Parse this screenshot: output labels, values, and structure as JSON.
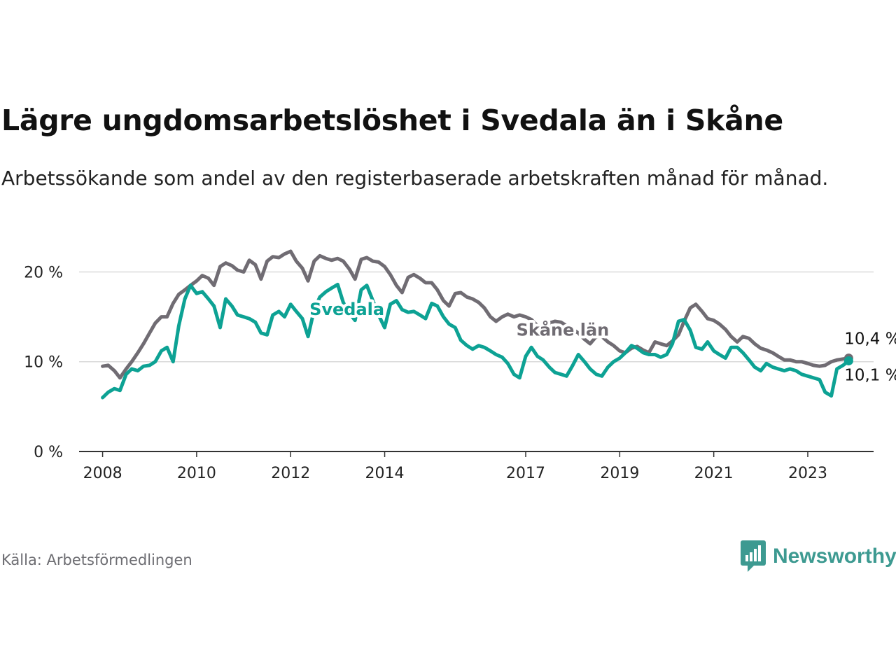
{
  "title": "Lägre ungdomsarbetslöshet i Svedala än i Skåne",
  "subtitle": "Arbetssökande som andel av den registerbaserade arbetskraften månad för månad.",
  "source": "Källa: Arbetsförmedlingen",
  "brand": {
    "name": "Newsworthy",
    "color": "#3d9a91",
    "icon": "newsworthy-bar-chart-icon"
  },
  "chart_data": {
    "type": "line",
    "title": "Lägre ungdomsarbetslöshet i Svedala än i Skåne",
    "xlabel": "",
    "ylabel": "",
    "xlim": [
      2007.5,
      2024.4
    ],
    "ylim": [
      0,
      23
    ],
    "y_ticks": [
      0,
      10,
      20
    ],
    "y_tick_labels": [
      "0 %",
      "10 %",
      "20 %"
    ],
    "x_ticks": [
      2008,
      2010,
      2012,
      2014,
      2017,
      2019,
      2021,
      2023
    ],
    "x_tick_labels": [
      "2008",
      "2010",
      "2012",
      "2014",
      "2017",
      "2019",
      "2021",
      "2023"
    ],
    "grid": true,
    "series": [
      {
        "name": "Skåne län",
        "label": "Skåne län",
        "color": "#706c73",
        "end_label": "10,4 %",
        "x": [
          2008,
          2008.12,
          2008.25,
          2008.37,
          2008.5,
          2008.62,
          2008.75,
          2008.87,
          2009,
          2009.12,
          2009.25,
          2009.37,
          2009.5,
          2009.62,
          2009.75,
          2009.87,
          2010,
          2010.12,
          2010.25,
          2010.37,
          2010.5,
          2010.62,
          2010.75,
          2010.87,
          2011,
          2011.12,
          2011.25,
          2011.37,
          2011.5,
          2011.62,
          2011.75,
          2011.87,
          2012,
          2012.12,
          2012.25,
          2012.37,
          2012.5,
          2012.62,
          2012.75,
          2012.87,
          2013,
          2013.12,
          2013.25,
          2013.37,
          2013.5,
          2013.62,
          2013.75,
          2013.87,
          2014,
          2014.12,
          2014.25,
          2014.37,
          2014.5,
          2014.62,
          2014.75,
          2014.87,
          2015,
          2015.12,
          2015.25,
          2015.37,
          2015.5,
          2015.62,
          2015.75,
          2015.87,
          2016,
          2016.12,
          2016.25,
          2016.37,
          2016.5,
          2016.62,
          2016.75,
          2016.87,
          2017,
          2017.12,
          2017.25,
          2017.37,
          2017.5,
          2017.62,
          2017.75,
          2017.87,
          2018,
          2018.12,
          2018.25,
          2018.37,
          2018.5,
          2018.62,
          2018.75,
          2018.87,
          2019,
          2019.12,
          2019.25,
          2019.37,
          2019.5,
          2019.62,
          2019.75,
          2019.87,
          2020,
          2020.12,
          2020.25,
          2020.37,
          2020.5,
          2020.62,
          2020.75,
          2020.87,
          2021,
          2021.12,
          2021.25,
          2021.37,
          2021.5,
          2021.62,
          2021.75,
          2021.87,
          2022,
          2022.12,
          2022.25,
          2022.37,
          2022.5,
          2022.62,
          2022.75,
          2022.87,
          2023,
          2023.12,
          2023.25,
          2023.37,
          2023.5,
          2023.62,
          2023.75,
          2023.87
        ],
        "values": [
          9.5,
          9.6,
          9.0,
          8.2,
          9.2,
          10.0,
          11.0,
          12.0,
          13.2,
          14.3,
          15.0,
          15.0,
          16.5,
          17.5,
          18.0,
          18.5,
          19.0,
          19.6,
          19.3,
          18.5,
          20.6,
          21.0,
          20.7,
          20.2,
          20.0,
          21.3,
          20.8,
          19.2,
          21.2,
          21.7,
          21.6,
          22.0,
          22.3,
          21.2,
          20.4,
          19.0,
          21.2,
          21.8,
          21.5,
          21.3,
          21.5,
          21.2,
          20.3,
          19.2,
          21.4,
          21.6,
          21.2,
          21.1,
          20.6,
          19.7,
          18.5,
          17.7,
          19.4,
          19.7,
          19.3,
          18.8,
          18.8,
          18.0,
          16.8,
          16.2,
          17.6,
          17.7,
          17.2,
          17.0,
          16.6,
          16.0,
          15.0,
          14.5,
          15.0,
          15.3,
          15.0,
          15.2,
          15.0,
          14.7,
          14.0,
          13.2,
          14.3,
          14.5,
          14.4,
          14.0,
          13.6,
          13.2,
          12.5,
          12.0,
          12.8,
          12.8,
          12.2,
          11.8,
          11.2,
          11.0,
          11.5,
          11.7,
          11.3,
          11.0,
          12.2,
          12.0,
          11.8,
          12.3,
          13.0,
          14.5,
          16.0,
          16.4,
          15.6,
          14.8,
          14.6,
          14.2,
          13.6,
          12.8,
          12.2,
          12.8,
          12.6,
          12.0,
          11.5,
          11.3,
          11.0,
          10.6,
          10.2,
          10.2,
          10.0,
          10.0,
          9.8,
          9.6,
          9.5,
          9.6,
          10.0,
          10.2,
          10.3,
          10.4
        ]
      },
      {
        "name": "Svedala",
        "label": "Svedala",
        "color": "#0da294",
        "end_label": "10,1 %",
        "x": [
          2008,
          2008.12,
          2008.25,
          2008.37,
          2008.5,
          2008.62,
          2008.75,
          2008.87,
          2009,
          2009.12,
          2009.25,
          2009.37,
          2009.5,
          2009.62,
          2009.75,
          2009.87,
          2010,
          2010.12,
          2010.25,
          2010.37,
          2010.5,
          2010.62,
          2010.75,
          2010.87,
          2011,
          2011.12,
          2011.25,
          2011.37,
          2011.5,
          2011.62,
          2011.75,
          2011.87,
          2012,
          2012.12,
          2012.25,
          2012.37,
          2012.5,
          2012.62,
          2012.75,
          2012.87,
          2013,
          2013.12,
          2013.25,
          2013.37,
          2013.5,
          2013.62,
          2013.75,
          2013.87,
          2014,
          2014.12,
          2014.25,
          2014.37,
          2014.5,
          2014.62,
          2014.75,
          2014.87,
          2015,
          2015.12,
          2015.25,
          2015.37,
          2015.5,
          2015.62,
          2015.75,
          2015.87,
          2016,
          2016.12,
          2016.25,
          2016.37,
          2016.5,
          2016.62,
          2016.75,
          2016.87,
          2017,
          2017.12,
          2017.25,
          2017.37,
          2017.5,
          2017.62,
          2017.75,
          2017.87,
          2018,
          2018.12,
          2018.25,
          2018.37,
          2018.5,
          2018.62,
          2018.75,
          2018.87,
          2019,
          2019.12,
          2019.25,
          2019.37,
          2019.5,
          2019.62,
          2019.75,
          2019.87,
          2020,
          2020.12,
          2020.25,
          2020.37,
          2020.5,
          2020.62,
          2020.75,
          2020.87,
          2021,
          2021.12,
          2021.25,
          2021.37,
          2021.5,
          2021.62,
          2021.75,
          2021.87,
          2022,
          2022.12,
          2022.25,
          2022.37,
          2022.5,
          2022.62,
          2022.75,
          2022.87,
          2023,
          2023.12,
          2023.25,
          2023.37,
          2023.5,
          2023.62,
          2023.75,
          2023.87
        ],
        "values": [
          6.0,
          6.6,
          7.0,
          6.8,
          8.6,
          9.2,
          9.0,
          9.5,
          9.6,
          10.0,
          11.2,
          11.6,
          10.0,
          14.0,
          17.0,
          18.5,
          17.6,
          17.8,
          17.0,
          16.2,
          13.8,
          17.0,
          16.2,
          15.2,
          15.0,
          14.8,
          14.4,
          13.2,
          13.0,
          15.2,
          15.6,
          15.0,
          16.4,
          15.6,
          14.8,
          12.8,
          15.8,
          17.2,
          17.8,
          18.2,
          18.6,
          16.6,
          15.4,
          14.6,
          18.0,
          18.5,
          16.8,
          15.2,
          13.8,
          16.4,
          16.8,
          15.8,
          15.5,
          15.6,
          15.2,
          14.8,
          16.5,
          16.2,
          15.0,
          14.2,
          13.8,
          12.4,
          11.8,
          11.4,
          11.8,
          11.6,
          11.2,
          10.8,
          10.5,
          9.8,
          8.6,
          8.2,
          10.6,
          11.6,
          10.6,
          10.2,
          9.4,
          8.8,
          8.6,
          8.4,
          9.6,
          10.8,
          10.0,
          9.2,
          8.6,
          8.4,
          9.4,
          10.0,
          10.4,
          11.0,
          11.8,
          11.5,
          11.0,
          10.8,
          10.8,
          10.5,
          10.8,
          12.0,
          14.5,
          14.7,
          13.5,
          11.6,
          11.4,
          12.2,
          11.2,
          10.8,
          10.4,
          11.6,
          11.6,
          11.0,
          10.2,
          9.4,
          9.0,
          9.8,
          9.4,
          9.2,
          9.0,
          9.2,
          9.0,
          8.6,
          8.4,
          8.2,
          8.0,
          6.6,
          6.2,
          9.2,
          9.6,
          10.1
        ]
      }
    ]
  }
}
